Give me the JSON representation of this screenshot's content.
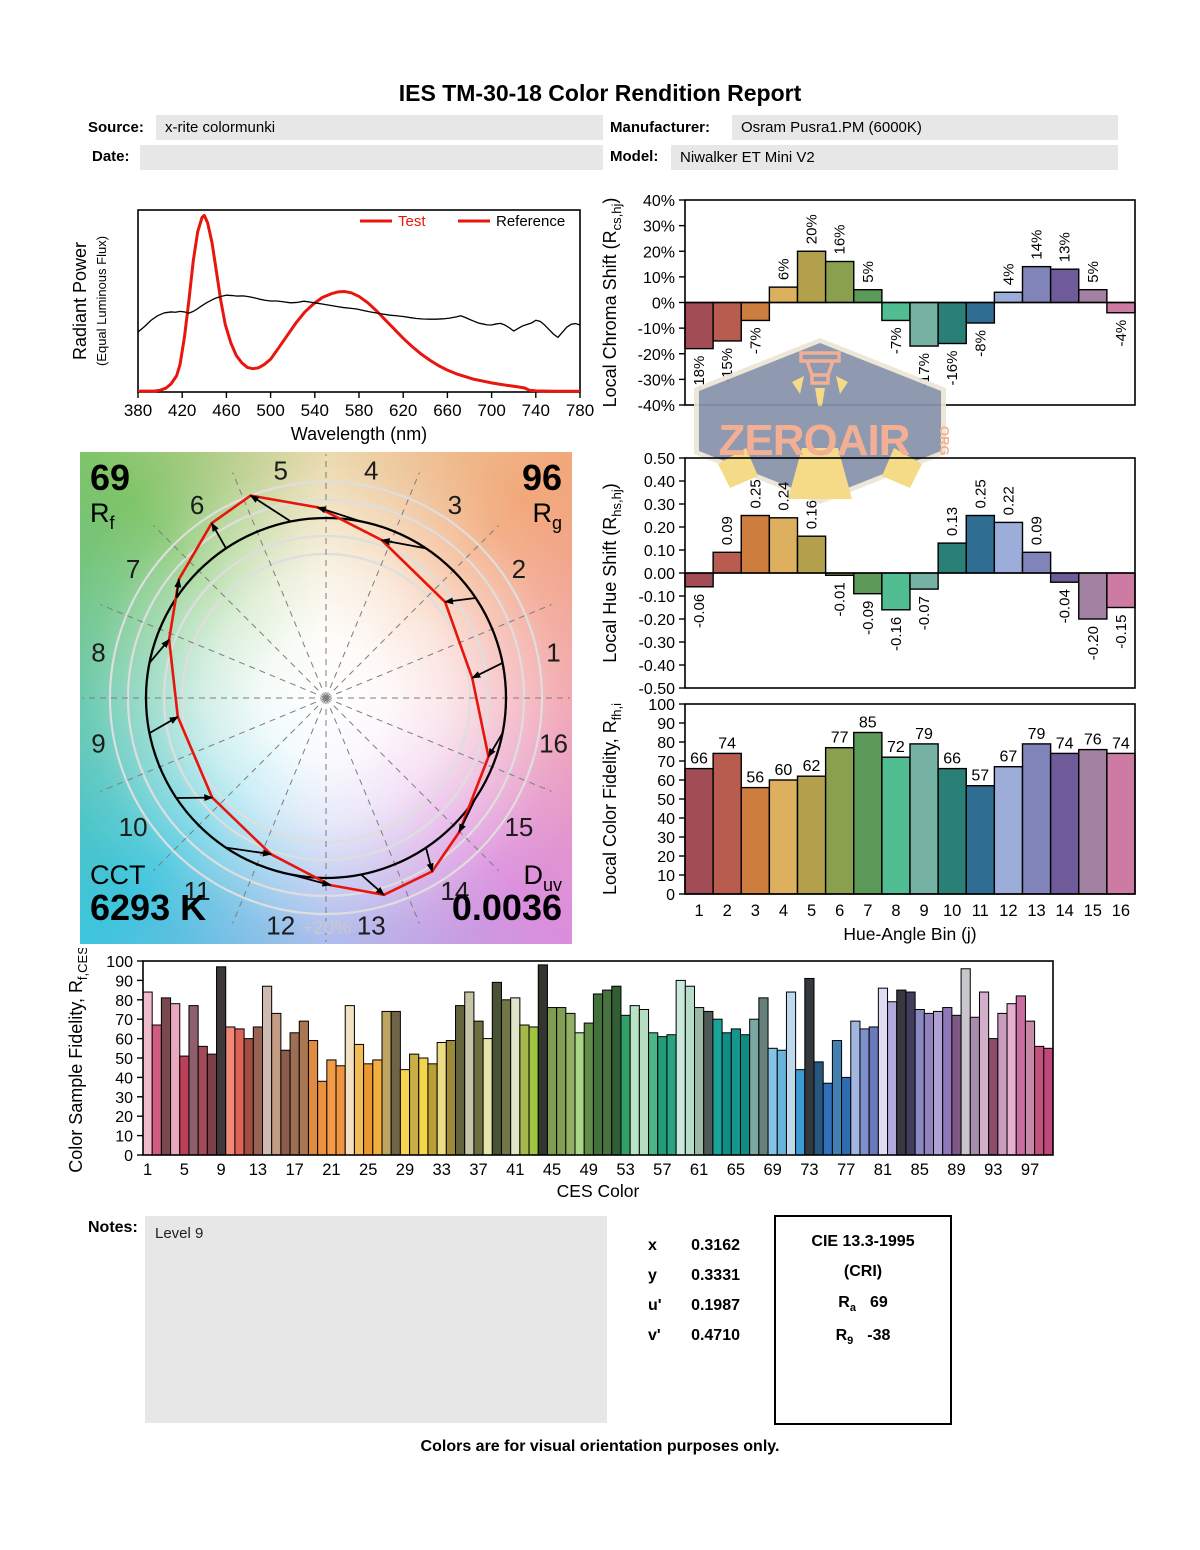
{
  "header": {
    "title": "IES TM-30-18 Color Rendition Report",
    "source_label": "Source:",
    "source_value": "x-rite colormunki",
    "manufacturer_label": "Manufacturer:",
    "manufacturer_value": "Osram Pusra1.PM (6000K)",
    "date_label": "Date:",
    "date_value": "",
    "model_label": "Model:",
    "model_value": "Niwalker ET Mini V2"
  },
  "watermark": {
    "text": "ZEROAIR",
    "org": "ORG"
  },
  "notes": {
    "label": "Notes:",
    "value": "Level 9"
  },
  "chromaticity": {
    "rows": [
      {
        "label": "x",
        "value": "0.3162"
      },
      {
        "label": "y",
        "value": "0.3331"
      },
      {
        "label": "u'",
        "value": "0.1987"
      },
      {
        "label": "v'",
        "value": "0.4710"
      }
    ]
  },
  "cri_box": {
    "title": "CIE 13.3-1995",
    "subtitle": "(CRI)",
    "rows": [
      {
        "pre": "R",
        "sub": "a",
        "value": "69"
      },
      {
        "pre": "R",
        "sub": "9",
        "value": "-38"
      }
    ]
  },
  "footer": "Colors are for visual orientation purposes only.",
  "bin_colors": [
    "#a24c55",
    "#b85c50",
    "#cd7d3e",
    "#dcb05e",
    "#b2a04c",
    "#8ba04f",
    "#5b9a58",
    "#52bd92",
    "#76b2a3",
    "#2a7f77",
    "#2f6e92",
    "#9dadd9",
    "#8084b8",
    "#6f5b99",
    "#a381a3",
    "#cd7ba3"
  ],
  "chart_data": [
    {
      "id": "spd",
      "type": "line",
      "xlabel": "Wavelength (nm)",
      "ylabel": "Radiant Power",
      "ylabel2": "(Equal Luminous Flux)",
      "xlim": [
        380,
        780
      ],
      "xticks": [
        380,
        420,
        460,
        500,
        540,
        580,
        620,
        660,
        700,
        740,
        780
      ],
      "ylim": [
        0,
        1
      ],
      "legend": [
        {
          "name": "Test",
          "text_color": "#e8160c",
          "swatch": "#e8160c"
        },
        {
          "name": "Reference",
          "text_color": "#000000",
          "swatch": "#e8160c"
        }
      ],
      "series": [
        {
          "name": "Test",
          "color": "#e8160c",
          "width": 3,
          "points": [
            [
              380,
              0.005
            ],
            [
              395,
              0.005
            ],
            [
              400,
              0.01
            ],
            [
              405,
              0.02
            ],
            [
              410,
              0.045
            ],
            [
              415,
              0.09
            ],
            [
              418,
              0.15
            ],
            [
              422,
              0.3
            ],
            [
              426,
              0.5
            ],
            [
              430,
              0.72
            ],
            [
              434,
              0.88
            ],
            [
              438,
              0.96
            ],
            [
              440,
              0.97
            ],
            [
              443,
              0.93
            ],
            [
              447,
              0.82
            ],
            [
              451,
              0.66
            ],
            [
              455,
              0.5
            ],
            [
              459,
              0.37
            ],
            [
              464,
              0.27
            ],
            [
              469,
              0.2
            ],
            [
              474,
              0.16
            ],
            [
              479,
              0.135
            ],
            [
              484,
              0.128
            ],
            [
              489,
              0.133
            ],
            [
              494,
              0.15
            ],
            [
              500,
              0.18
            ],
            [
              507,
              0.24
            ],
            [
              515,
              0.31
            ],
            [
              523,
              0.38
            ],
            [
              531,
              0.44
            ],
            [
              539,
              0.485
            ],
            [
              547,
              0.52
            ],
            [
              555,
              0.54
            ],
            [
              561,
              0.55
            ],
            [
              567,
              0.552
            ],
            [
              573,
              0.545
            ],
            [
              580,
              0.525
            ],
            [
              588,
              0.49
            ],
            [
              596,
              0.445
            ],
            [
              604,
              0.395
            ],
            [
              612,
              0.345
            ],
            [
              620,
              0.295
            ],
            [
              628,
              0.25
            ],
            [
              636,
              0.21
            ],
            [
              644,
              0.175
            ],
            [
              652,
              0.145
            ],
            [
              660,
              0.12
            ],
            [
              668,
              0.1
            ],
            [
              676,
              0.085
            ],
            [
              684,
              0.07
            ],
            [
              692,
              0.06
            ],
            [
              700,
              0.05
            ],
            [
              708,
              0.042
            ],
            [
              716,
              0.035
            ],
            [
              724,
              0.028
            ],
            [
              730,
              0.022
            ],
            [
              734,
              0.01
            ],
            [
              740,
              0.006
            ],
            [
              750,
              0.005
            ],
            [
              760,
              0.004
            ],
            [
              770,
              0.004
            ],
            [
              780,
              0.004
            ]
          ]
        },
        {
          "name": "Reference",
          "color": "#000000",
          "width": 1.3,
          "points": [
            [
              380,
              0.33
            ],
            [
              386,
              0.36
            ],
            [
              392,
              0.395
            ],
            [
              398,
              0.42
            ],
            [
              404,
              0.435
            ],
            [
              410,
              0.44
            ],
            [
              414,
              0.438
            ],
            [
              418,
              0.443
            ],
            [
              422,
              0.44
            ],
            [
              426,
              0.433
            ],
            [
              430,
              0.443
            ],
            [
              434,
              0.458
            ],
            [
              438,
              0.475
            ],
            [
              442,
              0.49
            ],
            [
              446,
              0.503
            ],
            [
              450,
              0.515
            ],
            [
              455,
              0.525
            ],
            [
              460,
              0.532
            ],
            [
              465,
              0.53
            ],
            [
              470,
              0.527
            ],
            [
              475,
              0.528
            ],
            [
              480,
              0.524
            ],
            [
              485,
              0.518
            ],
            [
              490,
              0.51
            ],
            [
              495,
              0.504
            ],
            [
              500,
              0.5
            ],
            [
              506,
              0.5
            ],
            [
              512,
              0.495
            ],
            [
              518,
              0.49
            ],
            [
              524,
              0.492
            ],
            [
              530,
              0.499
            ],
            [
              536,
              0.494
            ],
            [
              542,
              0.488
            ],
            [
              548,
              0.482
            ],
            [
              554,
              0.476
            ],
            [
              560,
              0.47
            ],
            [
              566,
              0.464
            ],
            [
              572,
              0.46
            ],
            [
              578,
              0.456
            ],
            [
              584,
              0.448
            ],
            [
              590,
              0.44
            ],
            [
              596,
              0.434
            ],
            [
              602,
              0.428
            ],
            [
              608,
              0.422
            ],
            [
              614,
              0.419
            ],
            [
              620,
              0.415
            ],
            [
              626,
              0.409
            ],
            [
              632,
              0.404
            ],
            [
              638,
              0.401
            ],
            [
              644,
              0.4
            ],
            [
              650,
              0.4
            ],
            [
              656,
              0.402
            ],
            [
              662,
              0.406
            ],
            [
              668,
              0.413
            ],
            [
              672,
              0.419
            ],
            [
              676,
              0.41
            ],
            [
              680,
              0.399
            ],
            [
              684,
              0.389
            ],
            [
              688,
              0.379
            ],
            [
              692,
              0.374
            ],
            [
              696,
              0.369
            ],
            [
              700,
              0.368
            ],
            [
              704,
              0.374
            ],
            [
              708,
              0.377
            ],
            [
              712,
              0.368
            ],
            [
              716,
              0.353
            ],
            [
              720,
              0.335
            ],
            [
              724,
              0.349
            ],
            [
              728,
              0.363
            ],
            [
              732,
              0.371
            ],
            [
              736,
              0.379
            ],
            [
              740,
              0.394
            ],
            [
              744,
              0.388
            ],
            [
              748,
              0.368
            ],
            [
              752,
              0.343
            ],
            [
              756,
              0.318
            ],
            [
              760,
              0.3
            ],
            [
              764,
              0.328
            ],
            [
              768,
              0.356
            ],
            [
              772,
              0.372
            ],
            [
              776,
              0.376
            ],
            [
              780,
              0.368
            ]
          ]
        }
      ]
    },
    {
      "id": "cvg",
      "type": "color-vector-graphic",
      "rf_value": "69",
      "rf_label": {
        "pre": "R",
        "sub": "f"
      },
      "rg_value": "96",
      "rg_label": {
        "pre": "R",
        "sub": "g"
      },
      "cct_label": "CCT",
      "cct_value": "6293 K",
      "duv_label": {
        "pre": "D",
        "sub": "uv"
      },
      "duv_value": "0.0036",
      "ring_label": "+20%",
      "bins": [
        "1",
        "2",
        "3",
        "4",
        "5",
        "6",
        "7",
        "8",
        "9",
        "10",
        "11",
        "12",
        "13",
        "14",
        "15",
        "16"
      ],
      "rcs": [
        -18,
        -15,
        -7,
        6,
        20,
        16,
        5,
        -7,
        -17,
        -16,
        -8,
        4,
        14,
        13,
        5,
        -4
      ],
      "rhs": [
        -0.06,
        0.09,
        0.25,
        0.24,
        0.16,
        -0.01,
        -0.09,
        -0.16,
        -0.07,
        0.13,
        0.25,
        0.22,
        0.09,
        -0.04,
        -0.2,
        -0.15
      ]
    },
    {
      "id": "chroma",
      "type": "bar",
      "ylabel": {
        "pre": "Local Chroma Shift (R",
        "sub": "cs,hj",
        "post": ")"
      },
      "ylim": [
        -40,
        40
      ],
      "ytick_step": 10,
      "tick_suffix": "%",
      "tick_decimals": 0,
      "values": [
        -18,
        -15,
        -7,
        6,
        20,
        16,
        5,
        -7,
        -17,
        -16,
        -8,
        4,
        14,
        13,
        5,
        -4
      ],
      "labels": [
        "-18%",
        "-15%",
        "-7%",
        "6%",
        "20%",
        "16%",
        "5%",
        "-7%",
        "-17%",
        "-16%",
        "-8%",
        "4%",
        "14%",
        "13%",
        "5%",
        "-4%"
      ]
    },
    {
      "id": "hue",
      "type": "bar",
      "ylabel": {
        "pre": "Local Hue Shift (R",
        "sub": "hs,hj",
        "post": ")"
      },
      "ylim": [
        -0.5,
        0.5
      ],
      "ytick_step": 0.1,
      "tick_suffix": "",
      "tick_decimals": 2,
      "values": [
        -0.06,
        0.09,
        0.25,
        0.24,
        0.16,
        -0.01,
        -0.09,
        -0.16,
        -0.07,
        0.13,
        0.25,
        0.22,
        0.09,
        -0.04,
        -0.2,
        -0.15
      ],
      "labels": [
        "-0.06",
        "0.09",
        "0.25",
        "0.24",
        "0.16",
        "-0.01",
        "-0.09",
        "-0.16",
        "-0.07",
        "0.13",
        "0.25",
        "0.22",
        "0.09",
        "-0.04",
        "-0.20",
        "-0.15"
      ]
    },
    {
      "id": "fidelity",
      "type": "bar",
      "ylabel": {
        "pre": "Local Color Fidelity, R",
        "sub": "fh,i",
        "post": ""
      },
      "xlabel": "Hue-Angle Bin (j)",
      "ylim": [
        0,
        100
      ],
      "ytick_step": 10,
      "tick_suffix": "",
      "tick_decimals": 0,
      "values": [
        66,
        74,
        56,
        60,
        62,
        77,
        85,
        72,
        79,
        66,
        57,
        67,
        79,
        74,
        76,
        74
      ],
      "labels": [
        "66",
        "74",
        "56",
        "60",
        "62",
        "77",
        "85",
        "72",
        "79",
        "66",
        "57",
        "67",
        "79",
        "74",
        "76",
        "74"
      ],
      "categories": [
        "1",
        "2",
        "3",
        "4",
        "5",
        "6",
        "7",
        "8",
        "9",
        "10",
        "11",
        "12",
        "13",
        "14",
        "15",
        "16"
      ]
    },
    {
      "id": "ces",
      "type": "bar",
      "ylabel": {
        "pre": "Color Sample Fidelity, R",
        "sub": "f,CESi",
        "post": ""
      },
      "xlabel": "CES Color",
      "ylim": [
        0,
        100
      ],
      "ytick_step": 10,
      "tick_suffix": "",
      "tick_decimals": 0,
      "xtick_every": 4,
      "values": [
        84,
        67,
        81,
        78,
        51,
        77,
        56,
        52,
        97,
        66,
        65,
        60,
        66,
        87,
        73,
        54,
        63,
        69,
        59,
        38,
        49,
        46,
        77,
        57,
        47,
        49,
        74,
        74,
        44,
        52,
        50,
        47,
        58,
        59,
        77,
        84,
        69,
        60,
        89,
        80,
        81,
        67,
        66,
        98,
        76,
        76,
        73,
        63,
        68,
        83,
        85,
        87,
        72,
        77,
        75,
        63,
        61,
        62,
        90,
        87,
        76,
        74,
        70,
        63,
        65,
        62,
        70,
        81,
        55,
        54,
        84,
        44,
        91,
        48,
        37,
        59,
        40,
        69,
        65,
        66,
        86,
        79,
        85,
        84,
        75,
        73,
        74,
        76,
        72,
        96,
        71,
        84,
        60,
        73,
        78,
        82,
        69,
        56,
        55
      ],
      "colors": [
        "#f0bccb",
        "#d05c80",
        "#7a4950",
        "#eba7bb",
        "#bc4059",
        "#8f5f6e",
        "#a34a58",
        "#7d4049",
        "#3d393b",
        "#f28878",
        "#dd6355",
        "#a34c44",
        "#996353",
        "#cfbab0",
        "#c49c84",
        "#8a5c4c",
        "#9f6f55",
        "#aa7752",
        "#e18a42",
        "#ec923e",
        "#f29c46",
        "#ee9442",
        "#f4e1c2",
        "#f2bc56",
        "#ec9831",
        "#f2ae3e",
        "#bda45f",
        "#6f6446",
        "#f8d64e",
        "#caaf45",
        "#f4d64c",
        "#bb9e37",
        "#ecdc85",
        "#9c8a36",
        "#63633e",
        "#c7c5a7",
        "#6e6e41",
        "#e8e5aa",
        "#495136",
        "#727647",
        "#e0e4c9",
        "#a6b74c",
        "#9ec440",
        "#32362e",
        "#7f9d52",
        "#829e55",
        "#92b065",
        "#aad786",
        "#608c4a",
        "#41703a",
        "#49733e",
        "#315e35",
        "#33a06a",
        "#bae2c4",
        "#b4debf",
        "#4bb788",
        "#219e79",
        "#29a382",
        "#cbe8dc",
        "#b7ddc6",
        "#9cb8a6",
        "#4f5a56",
        "#1ba39b",
        "#0e8e85",
        "#17968d",
        "#0d8c84",
        "#7aa9a2",
        "#66817b",
        "#84c3e5",
        "#68b5dc",
        "#bdd9eb",
        "#3d9bd6",
        "#33383c",
        "#27567e",
        "#2e70ba",
        "#4380b2",
        "#2b6db0",
        "#a2b6e0",
        "#7d90cb",
        "#6a79bd",
        "#dddcf2",
        "#b2aadb",
        "#3a3742",
        "#423d5c",
        "#8b87c2",
        "#9181bd",
        "#b0a0d4",
        "#8f78b8",
        "#7e5884",
        "#c9c6cd",
        "#a98cab",
        "#d3aecb",
        "#8d4d68",
        "#ca9cc0",
        "#e3b0cd",
        "#c76da2",
        "#c88aa8",
        "#c2517e",
        "#c04878"
      ]
    }
  ]
}
